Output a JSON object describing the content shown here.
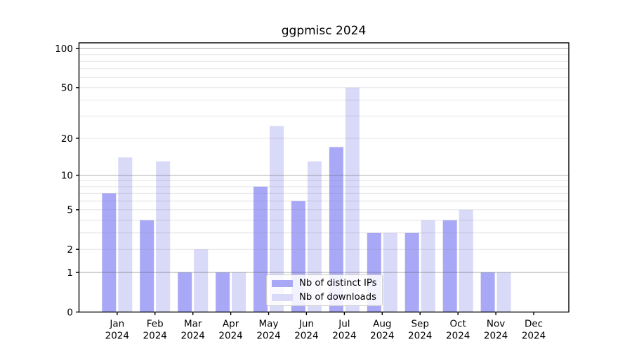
{
  "title": "ggpmisc 2024",
  "legend": {
    "items": [
      {
        "label": "Nb of distinct IPs",
        "color": "#a8a8f7"
      },
      {
        "label": "Nb of downloads",
        "color": "#d9d9f8"
      }
    ]
  },
  "chart_data": {
    "type": "bar",
    "title": "ggpmisc 2024",
    "xlabel": "",
    "ylabel": "",
    "y_scale": "log1p",
    "ylim": [
      0,
      111
    ],
    "grid": true,
    "legend_position": "lower center",
    "categories": [
      {
        "month": "Jan",
        "year": "2024"
      },
      {
        "month": "Feb",
        "year": "2024"
      },
      {
        "month": "Mar",
        "year": "2024"
      },
      {
        "month": "Apr",
        "year": "2024"
      },
      {
        "month": "May",
        "year": "2024"
      },
      {
        "month": "Jun",
        "year": "2024"
      },
      {
        "month": "Jul",
        "year": "2024"
      },
      {
        "month": "Aug",
        "year": "2024"
      },
      {
        "month": "Sep",
        "year": "2024"
      },
      {
        "month": "Oct",
        "year": "2024"
      },
      {
        "month": "Nov",
        "year": "2024"
      },
      {
        "month": "Dec",
        "year": "2024"
      }
    ],
    "series": [
      {
        "name": "Nb of distinct IPs",
        "color": "#a8a8f7",
        "values": [
          7,
          4,
          1,
          1,
          8,
          6,
          17,
          3,
          3,
          4,
          1,
          0
        ]
      },
      {
        "name": "Nb of downloads",
        "color": "#d9d9f8",
        "values": [
          14,
          13,
          2,
          1,
          25,
          13,
          50,
          3,
          4,
          5,
          1,
          0
        ]
      }
    ],
    "y_ticks": [
      0,
      1,
      2,
      5,
      10,
      20,
      50,
      100
    ],
    "y_major_gridlines": [
      1,
      10,
      100
    ],
    "y_minor_gridlines": [
      2,
      3,
      4,
      5,
      6,
      7,
      8,
      9,
      20,
      30,
      40,
      50,
      60,
      70,
      80,
      90
    ],
    "colors": {
      "major_grid": "#b4b4b4",
      "minor_grid": "#e8e8ea",
      "spine": "#000000"
    }
  }
}
